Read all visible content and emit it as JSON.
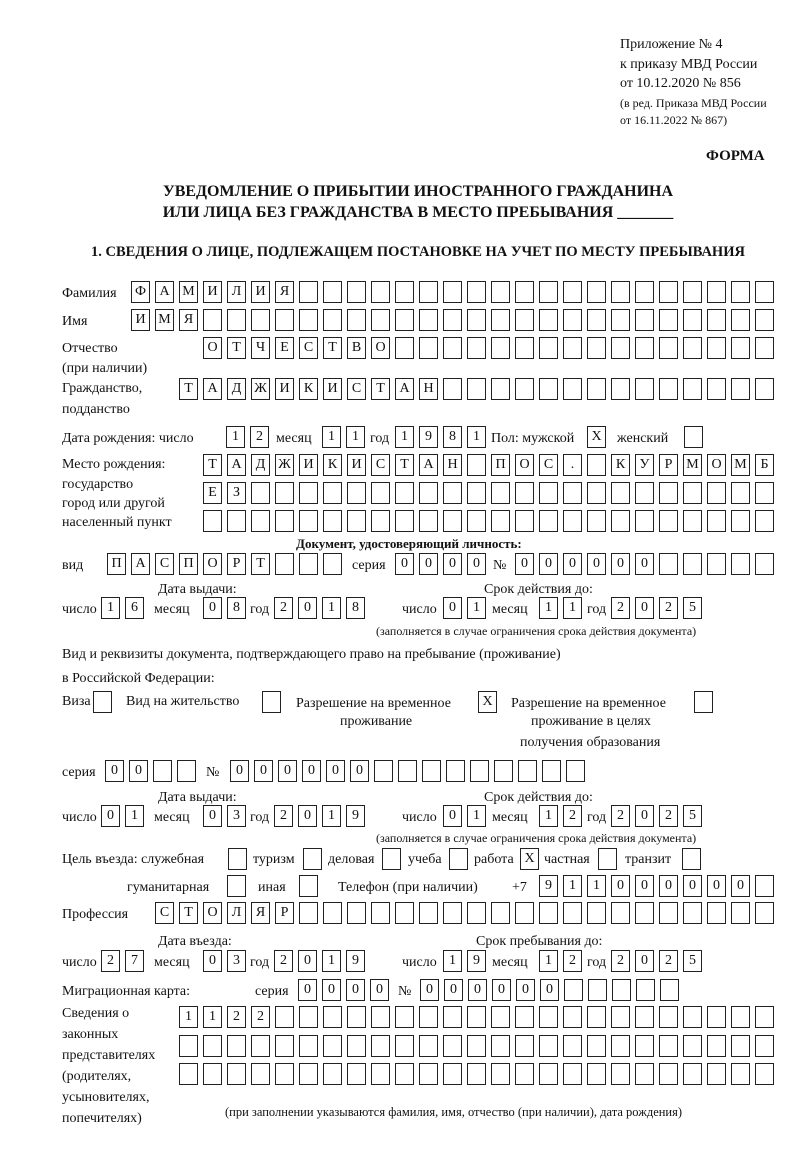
{
  "header": {
    "appendix": "Приложение № 4",
    "order": "к приказу МВД России",
    "order_date": "от 10.12.2020 № 856",
    "edition1": "(в ред. Приказа МВД России",
    "edition2": "от 16.11.2022 № 867)",
    "form": "ФОРМА",
    "title1": "УВЕДОМЛЕНИЕ О ПРИБЫТИИ ИНОСТРАННОГО ГРАЖДАНИНА",
    "title2": "ИЛИ ЛИЦА БЕЗ ГРАЖДАНСТВА В МЕСТО ПРЕБЫВАНИЯ _______"
  },
  "section1": {
    "heading": "1. СВЕДЕНИЯ О ЛИЦЕ, ПОДЛЕЖАЩЕМ ПОСТАНОВКЕ НА УЧЕТ ПО МЕСТУ ПРЕБЫВАНИЯ",
    "surname_label": "Фамилия",
    "surname": "ФАМИЛИЯ",
    "name_label": "Имя",
    "name": "ИМЯ",
    "patronymic_label": "Отчество",
    "patronymic_note": "(при наличии)",
    "patronymic": "ОТЧЕСТВО",
    "citizenship_label": "Гражданство,",
    "citizenship_label2": "подданство",
    "citizenship": "ТАДЖИКИСТАН",
    "birth": {
      "label": "Дата рождения:  число",
      "day": "12",
      "month_label": "месяц",
      "month": "11",
      "year_label": "год",
      "year": "1981",
      "sex_male_label": "Пол: мужской",
      "male": "X",
      "sex_female_label": "женский",
      "female": ""
    },
    "birthplace": {
      "label1": "Место рождения:",
      "label2": "государство",
      "label3": "город или другой",
      "label4": "населенный пункт",
      "row1": "ТАДЖИКИСТАН ПОС. КУРМОМБ",
      "row2": "ЕЗ",
      "row3": ""
    },
    "id_doc": {
      "heading": "Документ, удостоверяющий личность:",
      "type_label": "вид",
      "type": "ПАСПОРТ",
      "series_label": "серия",
      "series": "0000",
      "number_label": "№",
      "number": "000000",
      "issue_label": "Дата выдачи:",
      "valid_label": "Срок действия до:",
      "day_label": "число",
      "month_label": "месяц",
      "year_label": "год",
      "issue_day": "16",
      "issue_month": "08",
      "issue_year": "2018",
      "valid_day": "01",
      "valid_month": "11",
      "valid_year": "2025",
      "note": "(заполняется в случае ограничения срока действия документа)"
    },
    "stay_doc": {
      "label1": "Вид и реквизиты документа, подтверждающего право на пребывание (проживание)",
      "label2": "в Российской Федерации:",
      "visa_label": "Виза",
      "visa": "",
      "residence_label": "Вид на жительство",
      "residence": "",
      "trp_label1": "Разрешение на временное",
      "trp_label2": "проживание",
      "trp": "X",
      "trp_edu_label1": "Разрешение на временное",
      "trp_edu_label2": "проживание в целях",
      "trp_edu_label3": "получения образования",
      "trp_edu": "",
      "series_label": "серия",
      "series": "00",
      "number_label": "№",
      "number": "000000",
      "issue_label": "Дата выдачи:",
      "valid_label": "Срок действия до:",
      "day_label": "число",
      "month_label": "месяц",
      "year_label": "год",
      "issue_day": "01",
      "issue_month": "03",
      "issue_year": "2019",
      "valid_day": "01",
      "valid_month": "12",
      "valid_year": "2025",
      "note": "(заполняется в случае ограничения срока действия документа)"
    },
    "purpose": {
      "label": "Цель въезда: служебная",
      "service": "",
      "tourism_label": "туризм",
      "tourism": "",
      "business_label": "деловая",
      "business": "",
      "study_label": "учеба",
      "study": "",
      "work_label": "работа",
      "work": "X",
      "private_label": "частная",
      "private": "",
      "transit_label": "транзит",
      "transit": "",
      "humanitarian_label": "гуманитарная",
      "humanitarian": "",
      "other_label": "иная",
      "other": ""
    },
    "phone": {
      "label": "Телефон (при наличии)",
      "prefix": "+7",
      "value": "911000000"
    },
    "profession": {
      "label": "Профессия",
      "value": "СТОЛЯР"
    },
    "entry": {
      "entry_label": "Дата въезда:",
      "stay_label": "Срок пребывания до:",
      "day_label": "число",
      "month_label": "месяц",
      "year_label": "год",
      "entry_day": "27",
      "entry_month": "03",
      "entry_year": "2019",
      "stay_day": "19",
      "stay_month": "12",
      "stay_year": "2025"
    },
    "migration_card": {
      "label": "Миграционная карта:",
      "series_label": "серия",
      "series": "0000",
      "number_label": "№",
      "number": "000000"
    },
    "representatives": {
      "label1": "Сведения о",
      "label2": "законных",
      "label3": "представителях",
      "label4": "(родителях,",
      "label5": "усыновителях,",
      "label6": "попечителях)",
      "row1": "1122",
      "row2": "",
      "row3": "",
      "note": "(при заполнении указываются фамилия, имя, отчество (при наличии), дата рождения)"
    }
  }
}
